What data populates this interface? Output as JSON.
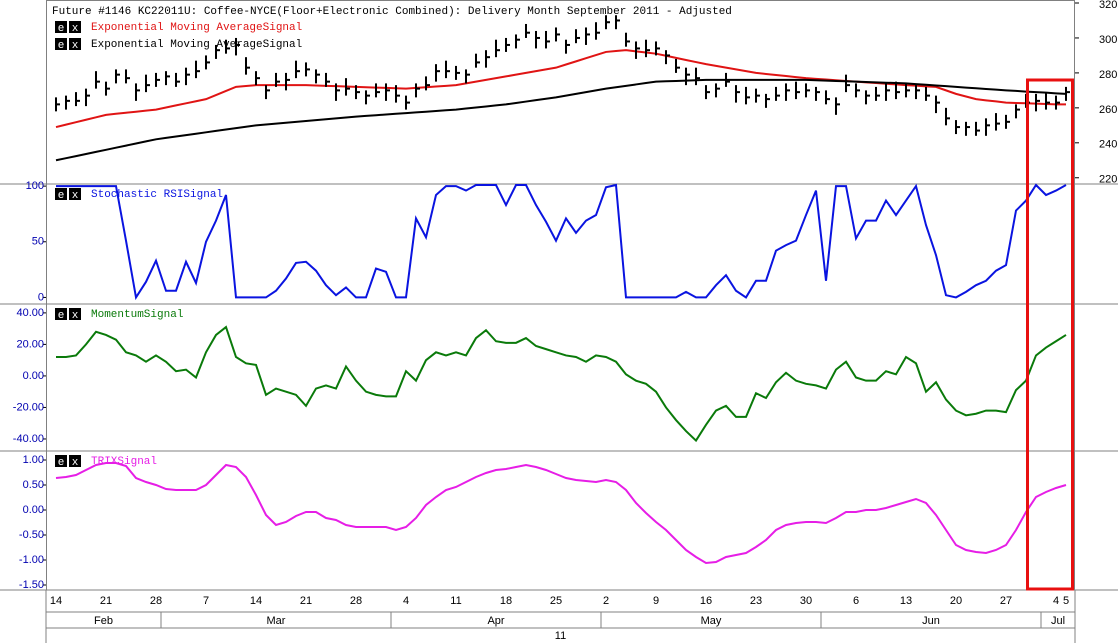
{
  "buttons": [
    "e",
    "x"
  ],
  "chart_data": [
    {
      "type": "ohlc",
      "title": "Future #1146 KC22011U: Coffee-NYCE(Floor+Electronic Combined): Delivery Month September 2011 -  Adjusted",
      "axis_side": "right",
      "tick_color": "#000000",
      "color": "#000000",
      "categories": [
        "14",
        null,
        null,
        null,
        null,
        "21",
        null,
        null,
        null,
        null,
        "28",
        null,
        null,
        null,
        null,
        "7",
        null,
        null,
        null,
        null,
        "14",
        null,
        null,
        null,
        null,
        "21",
        null,
        null,
        null,
        null,
        "28",
        null,
        null,
        null,
        null,
        "4",
        null,
        null,
        null,
        null,
        "11",
        null,
        null,
        null,
        null,
        "18",
        null,
        null,
        null,
        null,
        "25",
        null,
        null,
        null,
        null,
        "2",
        null,
        null,
        null,
        null,
        "9",
        null,
        null,
        null,
        null,
        "16",
        null,
        null,
        null,
        null,
        "23",
        null,
        null,
        null,
        null,
        "30",
        null,
        null,
        null,
        null,
        "6",
        null,
        null,
        null,
        null,
        "13",
        null,
        null,
        null,
        null,
        "20",
        null,
        null,
        null,
        null,
        "27",
        null,
        null,
        null,
        null,
        "4",
        "5"
      ],
      "months": [
        "Feb",
        "Mar",
        "Apr",
        "May",
        "Jun",
        "Jul"
      ],
      "month_starts": [
        11,
        34,
        55,
        77,
        99
      ],
      "year": "11",
      "ylim": [
        217,
        320
      ],
      "yticks": [
        220,
        240,
        260,
        280,
        300,
        320
      ],
      "high": [
        266,
        267,
        269,
        271,
        281,
        275,
        282,
        282,
        274,
        279,
        280,
        281,
        280,
        283,
        287,
        290,
        296,
        299,
        300,
        289,
        281,
        273,
        280,
        280,
        287,
        286,
        282,
        280,
        274,
        277,
        273,
        270,
        274,
        274,
        273,
        267,
        274,
        278,
        285,
        287,
        284,
        282,
        291,
        293,
        299,
        300,
        302,
        308,
        304,
        304,
        306,
        299,
        305,
        306,
        309,
        313,
        313,
        303,
        298,
        299,
        298,
        293,
        288,
        283,
        283,
        273,
        274,
        280,
        273,
        272,
        271,
        268,
        272,
        274,
        275,
        274,
        272,
        270,
        266,
        279,
        274,
        270,
        272,
        274,
        275,
        274,
        273,
        272,
        267,
        260,
        253,
        252,
        252,
        254,
        257,
        256,
        262,
        268,
        268,
        269,
        267,
        272
      ],
      "low": [
        258,
        259,
        261,
        261,
        271,
        267,
        274,
        274,
        264,
        269,
        272,
        273,
        272,
        273,
        277,
        282,
        288,
        291,
        290,
        279,
        273,
        265,
        272,
        270,
        277,
        278,
        274,
        272,
        264,
        267,
        265,
        262,
        266,
        264,
        263,
        259,
        266,
        270,
        275,
        277,
        276,
        274,
        283,
        283,
        289,
        292,
        294,
        300,
        294,
        294,
        298,
        291,
        297,
        296,
        299,
        305,
        305,
        295,
        288,
        289,
        290,
        285,
        280,
        273,
        273,
        265,
        266,
        272,
        263,
        262,
        263,
        260,
        264,
        264,
        265,
        266,
        264,
        262,
        256,
        269,
        266,
        262,
        264,
        264,
        265,
        266,
        265,
        264,
        257,
        250,
        245,
        244,
        244,
        244,
        247,
        248,
        254,
        260,
        258,
        259,
        259,
        264
      ],
      "close": [
        262,
        264,
        264,
        267,
        275,
        271,
        279,
        277,
        270,
        273,
        276,
        278,
        275,
        279,
        281,
        286,
        293,
        294,
        296,
        283,
        277,
        270,
        275,
        276,
        281,
        282,
        279,
        275,
        270,
        271,
        269,
        267,
        269,
        270,
        267,
        263,
        271,
        273,
        281,
        281,
        280,
        279,
        286,
        289,
        293,
        296,
        299,
        303,
        300,
        298,
        302,
        296,
        300,
        302,
        303,
        309,
        310,
        298,
        294,
        293,
        294,
        290,
        283,
        279,
        277,
        269,
        271,
        275,
        269,
        266,
        267,
        265,
        267,
        270,
        269,
        270,
        269,
        265,
        262,
        273,
        270,
        267,
        267,
        270,
        269,
        270,
        270,
        267,
        263,
        254,
        249,
        249,
        247,
        250,
        251,
        252,
        259,
        263,
        264,
        263,
        263,
        269
      ],
      "series": [
        {
          "name": "Exponential Moving AverageSignal",
          "color": "#e01414",
          "values": [
            249,
            250.4,
            251.8,
            253.2,
            254.6,
            256,
            256.6,
            257.2,
            257.8,
            258.4,
            259,
            260.2,
            261.4,
            262.6,
            263.8,
            265,
            267.3,
            269.7,
            272,
            272.5,
            273,
            273,
            273,
            273,
            273,
            273,
            272.8,
            272.6,
            272.4,
            272.2,
            272,
            271.8,
            271.6,
            271.4,
            271.2,
            271,
            271.4,
            271.8,
            272.2,
            272.6,
            273,
            274,
            275,
            276,
            277,
            278,
            279,
            280,
            281,
            282,
            283,
            284.8,
            286.6,
            288.4,
            290.2,
            292,
            292.5,
            293,
            292.3,
            291.7,
            291,
            289.8,
            288.6,
            287.4,
            286.2,
            285,
            284,
            283,
            282,
            281,
            280,
            279.4,
            278.8,
            278.2,
            277.6,
            277,
            276.6,
            276.2,
            275.8,
            275.4,
            275,
            274.6,
            274.2,
            273.8,
            273.4,
            273,
            272.7,
            272.3,
            272,
            270,
            268,
            266.5,
            265,
            264.3,
            263.7,
            263,
            262.8,
            262.6,
            262.4,
            262.2,
            262,
            262
          ]
        },
        {
          "name": "Exponential Moving AverageSignal",
          "color": "#000000",
          "values": [
            230,
            231.2,
            232.4,
            233.6,
            234.8,
            236,
            237.2,
            238.4,
            239.6,
            240.8,
            242,
            242.8,
            243.6,
            244.4,
            245.2,
            246,
            246.8,
            247.6,
            248.4,
            249.2,
            250,
            250.5,
            251,
            251.5,
            252,
            252.5,
            253,
            253.5,
            254,
            254.5,
            255,
            255.4,
            255.8,
            256.2,
            256.6,
            257,
            257.4,
            257.8,
            258.2,
            258.6,
            259,
            259.6,
            260.2,
            260.8,
            261.4,
            262,
            262.8,
            263.6,
            264.4,
            265.2,
            266,
            267,
            268,
            269,
            270,
            271,
            271.8,
            272.6,
            273.4,
            274.2,
            275,
            275.2,
            275.4,
            275.6,
            275.8,
            276,
            276,
            276,
            276,
            276,
            276,
            276,
            276,
            276,
            276,
            276,
            275.8,
            275.6,
            275.4,
            275.2,
            275,
            274.8,
            274.6,
            274.4,
            274.2,
            274,
            273.6,
            273.2,
            272.8,
            272.4,
            272,
            271.6,
            271.2,
            270.8,
            270.4,
            270,
            269.7,
            269.3,
            269,
            268.7,
            268.3,
            268
          ]
        }
      ]
    },
    {
      "type": "line",
      "axis_side": "left",
      "tick_color": "#0000b0",
      "ylim": [
        -5,
        101
      ],
      "yticks": [
        0,
        50,
        100
      ],
      "series": [
        {
          "name": "Stochastic RSISignal",
          "color": "#0a14e0",
          "values": [
            100,
            100,
            100,
            100,
            100,
            100,
            100,
            51,
            0,
            14,
            33,
            6,
            6,
            32,
            13,
            50,
            69,
            92,
            0,
            0,
            0,
            0,
            6,
            17,
            31,
            32,
            24,
            11,
            2,
            9,
            0,
            0,
            26,
            23,
            0,
            0,
            71,
            54,
            92,
            100,
            100,
            96,
            101,
            101,
            101,
            83,
            101,
            101,
            83,
            68,
            51,
            71,
            58,
            69,
            74,
            99,
            101,
            0,
            0,
            0,
            0,
            0,
            0,
            5,
            0,
            0,
            11,
            20,
            6,
            0,
            15,
            15,
            42,
            47,
            51,
            74,
            96,
            15,
            100,
            100,
            53,
            69,
            69,
            87,
            74,
            87,
            100,
            65,
            38,
            2,
            0,
            5,
            11,
            15,
            24,
            29,
            78,
            87,
            101,
            92,
            96,
            101
          ]
        }
      ]
    },
    {
      "type": "line",
      "axis_side": "left",
      "tick_color": "#0000b0",
      "ylim": [
        -47,
        45
      ],
      "yticks": [
        {
          "value": -40,
          "label": "-40.00"
        },
        {
          "value": -20,
          "label": "-20.00"
        },
        {
          "value": 0,
          "label": "0.00"
        },
        {
          "value": 20,
          "label": "20.00"
        },
        {
          "value": 40,
          "label": "40.00"
        }
      ],
      "series": [
        {
          "name": "MomentumSignal",
          "color": "#0a7a0a",
          "values": [
            12,
            12,
            13,
            20,
            28,
            26,
            23,
            15,
            13,
            9,
            13,
            9,
            3,
            4,
            -1,
            15,
            26,
            31,
            12,
            8,
            7,
            -12,
            -8,
            -10,
            -12,
            -19,
            -8,
            -6,
            -8,
            6,
            -3,
            -10,
            -12,
            -13,
            -13,
            3,
            -3,
            10,
            15,
            13,
            15,
            13,
            24,
            29,
            22,
            21,
            21,
            24,
            19,
            17,
            15,
            13,
            12,
            9,
            13,
            12,
            9,
            1,
            -3,
            -5,
            -10,
            -20,
            -28,
            -35,
            -41,
            -31,
            -22,
            -19,
            -26,
            -26,
            -11,
            -14,
            -4,
            2,
            -3,
            -5,
            -6,
            -8,
            4,
            9,
            -1,
            -3,
            -3,
            3,
            1,
            12,
            8,
            -10,
            -4,
            -15,
            -22,
            -25,
            -24,
            -22,
            -22,
            -23,
            -9,
            -3,
            13,
            18,
            22,
            26
          ]
        }
      ]
    },
    {
      "type": "line",
      "axis_side": "left",
      "tick_color": "#0000b0",
      "ylim": [
        -1.6,
        1.16
      ],
      "yticks": [
        {
          "value": -1.5,
          "label": "-1.50"
        },
        {
          "value": -1,
          "label": "-1.00"
        },
        {
          "value": -0.5,
          "label": "-0.50"
        },
        {
          "value": 0,
          "label": "0.00"
        },
        {
          "value": 0.5,
          "label": "0.50"
        },
        {
          "value": 1,
          "label": "1.00"
        }
      ],
      "series": [
        {
          "name": "TRIXSignal",
          "color": "#e61ee6",
          "values": [
            0.64,
            0.66,
            0.7,
            0.8,
            0.9,
            0.94,
            0.94,
            0.88,
            0.64,
            0.56,
            0.5,
            0.42,
            0.4,
            0.4,
            0.4,
            0.5,
            0.7,
            0.9,
            0.86,
            0.66,
            0.3,
            -0.1,
            -0.3,
            -0.24,
            -0.12,
            -0.04,
            -0.04,
            -0.16,
            -0.2,
            -0.3,
            -0.34,
            -0.34,
            -0.34,
            -0.34,
            -0.4,
            -0.34,
            -0.16,
            0.1,
            0.26,
            0.4,
            0.46,
            0.56,
            0.66,
            0.74,
            0.8,
            0.82,
            0.86,
            0.9,
            0.86,
            0.8,
            0.72,
            0.64,
            0.6,
            0.58,
            0.56,
            0.6,
            0.56,
            0.4,
            0.14,
            -0.06,
            -0.24,
            -0.4,
            -0.6,
            -0.8,
            -0.94,
            -1.06,
            -1.04,
            -0.94,
            -0.9,
            -0.86,
            -0.74,
            -0.6,
            -0.4,
            -0.3,
            -0.26,
            -0.24,
            -0.24,
            -0.26,
            -0.16,
            -0.04,
            -0.04,
            0,
            0,
            0.04,
            0.1,
            0.16,
            0.22,
            0.14,
            -0.1,
            -0.4,
            -0.7,
            -0.8,
            -0.84,
            -0.86,
            -0.8,
            -0.7,
            -0.4,
            -0.04,
            0.26,
            0.36,
            0.44,
            0.5
          ]
        }
      ]
    }
  ]
}
